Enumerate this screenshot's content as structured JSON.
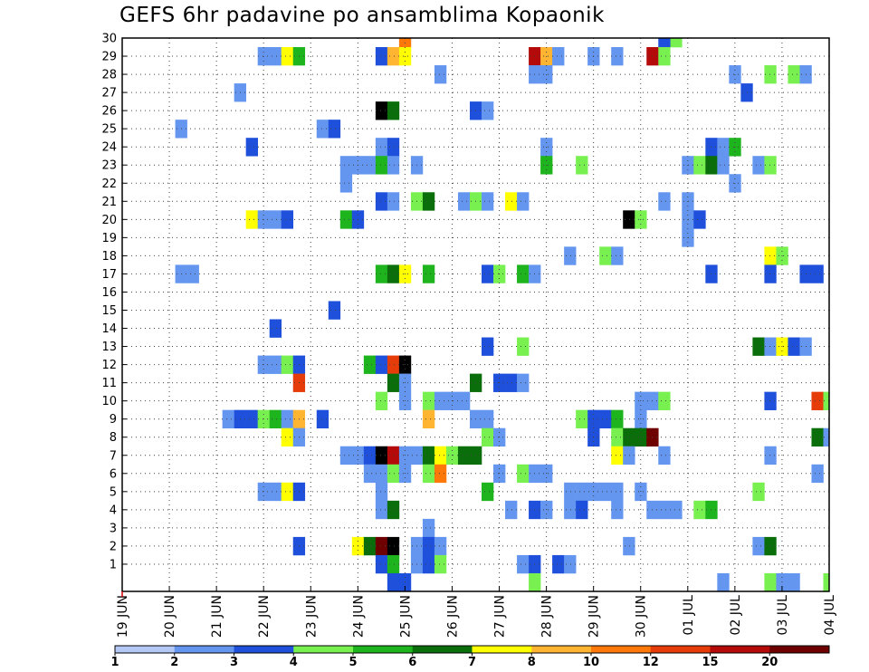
{
  "title": "GEFS 6hr padavine po ansamblima Kopaonik",
  "chart_data": {
    "type": "heatmap",
    "title": "GEFS 6hr padavine po ansamblima Kopaonik",
    "xlabel": "",
    "ylabel": "",
    "x_tick_labels": [
      "19 JUN",
      "20 JUN",
      "21 JUN",
      "22 JUN",
      "23 JUN",
      "24 JUN",
      "25 JUN",
      "26 JUN",
      "27 JUN",
      "28 JUN",
      "29 JUN",
      "30 JUN",
      "01 JUL",
      "02 JUL",
      "03 JUL",
      "04 JUL"
    ],
    "y_tick_labels": [
      "1",
      "2",
      "3",
      "4",
      "5",
      "6",
      "7",
      "8",
      "9",
      "10",
      "11",
      "12",
      "13",
      "14",
      "15",
      "16",
      "17",
      "18",
      "19",
      "20",
      "21",
      "22",
      "23",
      "24",
      "25",
      "26",
      "27",
      "28",
      "29",
      "30"
    ],
    "xlim_steps": [
      0,
      60
    ],
    "ylim": [
      0,
      30
    ],
    "grid": true,
    "colorbar": {
      "labels": [
        "1",
        "2",
        "3",
        "4",
        "5",
        "6",
        "7",
        "8",
        "10",
        "12",
        "15",
        "20"
      ],
      "colors": [
        "#b4c8f5",
        "#6496f0",
        "#1e50dc",
        "#78f050",
        "#1eb41e",
        "#0a6e0a",
        "#ffff00",
        "#ffb432",
        "#ff780a",
        "#e63c0a",
        "#b40a0a",
        "#6e0000"
      ]
    },
    "cells": [
      [
        24,
        30,
        8
      ],
      [
        47,
        30,
        3
      ],
      [
        46,
        30,
        2
      ],
      [
        12,
        29,
        1
      ],
      [
        13,
        29,
        1
      ],
      [
        14,
        29,
        6
      ],
      [
        15,
        29,
        4
      ],
      [
        22,
        29,
        2
      ],
      [
        23,
        29,
        7
      ],
      [
        24,
        29,
        6
      ],
      [
        35,
        29,
        10
      ],
      [
        36,
        29,
        7
      ],
      [
        37,
        29,
        1
      ],
      [
        40,
        29,
        1
      ],
      [
        42,
        29,
        1
      ],
      [
        45,
        29,
        10
      ],
      [
        46,
        29,
        3
      ],
      [
        27,
        28,
        1
      ],
      [
        35,
        28,
        1
      ],
      [
        36,
        28,
        1
      ],
      [
        52,
        28,
        1
      ],
      [
        55,
        28,
        3
      ],
      [
        57,
        28,
        3
      ],
      [
        58,
        28,
        1
      ],
      [
        10,
        27,
        1
      ],
      [
        53,
        27,
        2
      ],
      [
        22,
        26,
        12
      ],
      [
        23,
        26,
        5
      ],
      [
        30,
        26,
        2
      ],
      [
        31,
        26,
        1
      ],
      [
        5,
        25,
        1
      ],
      [
        17,
        25,
        1
      ],
      [
        18,
        25,
        2
      ],
      [
        11,
        24,
        2
      ],
      [
        22,
        24,
        1
      ],
      [
        23,
        24,
        2
      ],
      [
        36,
        24,
        1
      ],
      [
        50,
        24,
        2
      ],
      [
        51,
        24,
        1
      ],
      [
        52,
        24,
        4
      ],
      [
        19,
        23,
        1
      ],
      [
        20,
        23,
        1
      ],
      [
        21,
        23,
        1
      ],
      [
        22,
        23,
        4
      ],
      [
        23,
        23,
        1
      ],
      [
        25,
        23,
        1
      ],
      [
        36,
        23,
        4
      ],
      [
        39,
        23,
        3
      ],
      [
        48,
        23,
        1
      ],
      [
        49,
        23,
        3
      ],
      [
        50,
        23,
        5
      ],
      [
        51,
        23,
        1
      ],
      [
        54,
        23,
        1
      ],
      [
        55,
        23,
        3
      ],
      [
        19,
        22,
        1
      ],
      [
        52,
        22,
        1
      ],
      [
        22,
        21,
        2
      ],
      [
        23,
        21,
        1
      ],
      [
        25,
        21,
        3
      ],
      [
        26,
        21,
        5
      ],
      [
        29,
        21,
        1
      ],
      [
        30,
        21,
        3
      ],
      [
        31,
        21,
        1
      ],
      [
        33,
        21,
        6
      ],
      [
        34,
        21,
        1
      ],
      [
        46,
        21,
        1
      ],
      [
        48,
        21,
        1
      ],
      [
        11,
        20,
        6
      ],
      [
        12,
        20,
        1
      ],
      [
        13,
        20,
        1
      ],
      [
        14,
        20,
        2
      ],
      [
        19,
        20,
        4
      ],
      [
        20,
        20,
        2
      ],
      [
        43,
        20,
        12
      ],
      [
        44,
        20,
        3
      ],
      [
        48,
        20,
        1
      ],
      [
        49,
        20,
        2
      ],
      [
        48,
        19,
        1
      ],
      [
        38,
        18,
        1
      ],
      [
        41,
        18,
        3
      ],
      [
        42,
        18,
        1
      ],
      [
        55,
        18,
        6
      ],
      [
        56,
        18,
        3
      ],
      [
        5,
        17,
        1
      ],
      [
        6,
        17,
        1
      ],
      [
        22,
        17,
        4
      ],
      [
        23,
        17,
        5
      ],
      [
        24,
        17,
        6
      ],
      [
        26,
        17,
        4
      ],
      [
        31,
        17,
        2
      ],
      [
        32,
        17,
        3
      ],
      [
        34,
        17,
        4
      ],
      [
        35,
        17,
        1
      ],
      [
        50,
        17,
        2
      ],
      [
        55,
        17,
        2
      ],
      [
        58,
        17,
        2
      ],
      [
        59,
        17,
        2
      ],
      [
        18,
        15,
        2
      ],
      [
        13,
        14,
        2
      ],
      [
        31,
        13,
        2
      ],
      [
        34,
        13,
        3
      ],
      [
        54,
        13,
        5
      ],
      [
        55,
        13,
        1
      ],
      [
        56,
        13,
        6
      ],
      [
        57,
        13,
        2
      ],
      [
        58,
        13,
        1
      ],
      [
        12,
        12,
        1
      ],
      [
        13,
        12,
        1
      ],
      [
        14,
        12,
        3
      ],
      [
        15,
        12,
        2
      ],
      [
        21,
        12,
        4
      ],
      [
        22,
        12,
        2
      ],
      [
        23,
        12,
        9
      ],
      [
        24,
        12,
        12
      ],
      [
        15,
        11,
        9
      ],
      [
        23,
        11,
        5
      ],
      [
        24,
        11,
        1
      ],
      [
        30,
        11,
        5
      ],
      [
        32,
        11,
        2
      ],
      [
        33,
        11,
        2
      ],
      [
        34,
        11,
        1
      ],
      [
        22,
        10,
        3
      ],
      [
        24,
        10,
        1
      ],
      [
        26,
        10,
        3
      ],
      [
        27,
        10,
        1
      ],
      [
        28,
        10,
        1
      ],
      [
        29,
        10,
        1
      ],
      [
        44,
        10,
        1
      ],
      [
        45,
        10,
        1
      ],
      [
        46,
        10,
        3
      ],
      [
        55,
        10,
        2
      ],
      [
        59,
        10,
        9
      ],
      [
        60,
        10,
        3
      ],
      [
        9,
        9,
        1
      ],
      [
        10,
        9,
        2
      ],
      [
        11,
        9,
        2
      ],
      [
        12,
        9,
        3
      ],
      [
        13,
        9,
        4
      ],
      [
        14,
        9,
        1
      ],
      [
        15,
        9,
        7
      ],
      [
        17,
        9,
        2
      ],
      [
        26,
        9,
        7
      ],
      [
        30,
        9,
        1
      ],
      [
        31,
        9,
        1
      ],
      [
        39,
        9,
        3
      ],
      [
        40,
        9,
        2
      ],
      [
        41,
        9,
        2
      ],
      [
        42,
        9,
        4
      ],
      [
        44,
        9,
        1
      ],
      [
        14,
        8,
        6
      ],
      [
        15,
        8,
        1
      ],
      [
        31,
        8,
        3
      ],
      [
        32,
        8,
        1
      ],
      [
        40,
        8,
        2
      ],
      [
        42,
        8,
        3
      ],
      [
        43,
        8,
        5
      ],
      [
        44,
        8,
        5
      ],
      [
        45,
        8,
        11
      ],
      [
        59,
        8,
        5
      ],
      [
        60,
        8,
        1
      ],
      [
        19,
        7,
        1
      ],
      [
        20,
        7,
        1
      ],
      [
        21,
        7,
        2
      ],
      [
        22,
        7,
        12
      ],
      [
        23,
        7,
        10
      ],
      [
        24,
        7,
        1
      ],
      [
        25,
        7,
        1
      ],
      [
        26,
        7,
        5
      ],
      [
        27,
        7,
        6
      ],
      [
        28,
        7,
        3
      ],
      [
        29,
        7,
        5
      ],
      [
        30,
        7,
        5
      ],
      [
        42,
        7,
        6
      ],
      [
        43,
        7,
        1
      ],
      [
        46,
        7,
        1
      ],
      [
        55,
        7,
        1
      ],
      [
        21,
        6,
        1
      ],
      [
        22,
        6,
        1
      ],
      [
        23,
        6,
        3
      ],
      [
        24,
        6,
        1
      ],
      [
        26,
        6,
        3
      ],
      [
        27,
        6,
        8
      ],
      [
        32,
        6,
        1
      ],
      [
        34,
        6,
        3
      ],
      [
        35,
        6,
        1
      ],
      [
        36,
        6,
        1
      ],
      [
        59,
        6,
        1
      ],
      [
        12,
        5,
        1
      ],
      [
        13,
        5,
        1
      ],
      [
        14,
        5,
        6
      ],
      [
        15,
        5,
        2
      ],
      [
        22,
        5,
        1
      ],
      [
        31,
        5,
        4
      ],
      [
        38,
        5,
        1
      ],
      [
        39,
        5,
        1
      ],
      [
        40,
        5,
        1
      ],
      [
        41,
        5,
        1
      ],
      [
        42,
        5,
        1
      ],
      [
        44,
        5,
        1
      ],
      [
        54,
        5,
        3
      ],
      [
        22,
        4,
        1
      ],
      [
        23,
        4,
        5
      ],
      [
        33,
        4,
        1
      ],
      [
        35,
        4,
        2
      ],
      [
        36,
        4,
        1
      ],
      [
        38,
        4,
        1
      ],
      [
        39,
        4,
        2
      ],
      [
        42,
        4,
        1
      ],
      [
        45,
        4,
        1
      ],
      [
        46,
        4,
        1
      ],
      [
        47,
        4,
        1
      ],
      [
        49,
        4,
        3
      ],
      [
        50,
        4,
        4
      ],
      [
        26,
        3,
        1
      ],
      [
        15,
        2,
        2
      ],
      [
        20,
        2,
        6
      ],
      [
        21,
        2,
        5
      ],
      [
        22,
        2,
        11
      ],
      [
        23,
        2,
        12
      ],
      [
        25,
        2,
        1
      ],
      [
        26,
        2,
        2
      ],
      [
        27,
        2,
        1
      ],
      [
        43,
        2,
        1
      ],
      [
        54,
        2,
        1
      ],
      [
        55,
        2,
        5
      ],
      [
        22,
        1,
        2
      ],
      [
        23,
        1,
        4
      ],
      [
        25,
        1,
        1
      ],
      [
        26,
        1,
        2
      ],
      [
        27,
        1,
        3
      ],
      [
        34,
        1,
        1
      ],
      [
        35,
        1,
        2
      ],
      [
        37,
        1,
        2
      ],
      [
        38,
        1,
        1
      ],
      [
        23,
        0,
        2
      ],
      [
        24,
        0,
        2
      ],
      [
        35,
        0,
        3
      ],
      [
        51,
        0,
        1
      ],
      [
        55,
        0,
        3
      ],
      [
        56,
        0,
        1
      ],
      [
        57,
        0,
        1
      ],
      [
        60,
        0,
        3
      ]
    ]
  }
}
